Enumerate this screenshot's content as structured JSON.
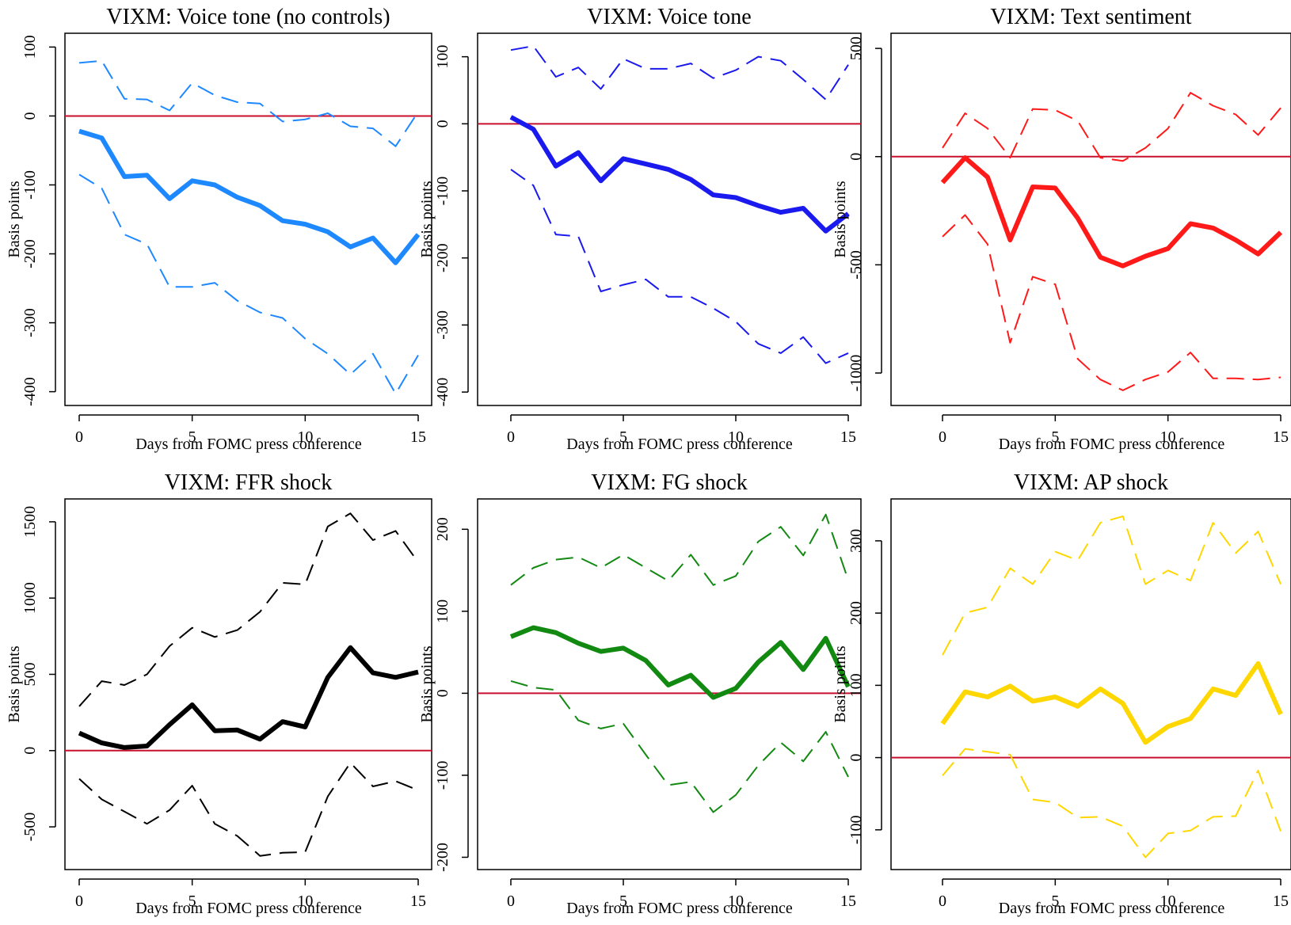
{
  "chart_data": [
    {
      "type": "line",
      "title": "VIXM: Voice tone (no controls)",
      "xlabel": "Days from FOMC press conference",
      "ylabel": "Basis points",
      "color": "#1e88ff",
      "xlim": [
        0,
        15
      ],
      "ylim": [
        -420,
        120
      ],
      "xticks": [
        0,
        5,
        10,
        15
      ],
      "yticks": [
        -400,
        -300,
        -200,
        -100,
        0,
        100
      ],
      "zero_line_color": "#c8102e",
      "x": [
        0,
        1,
        2,
        3,
        4,
        5,
        6,
        7,
        8,
        9,
        10,
        11,
        12,
        13,
        14,
        15
      ],
      "series": [
        {
          "role": "estimate",
          "values": [
            -22,
            -32,
            -88,
            -86,
            -120,
            -94,
            -100,
            -118,
            -130,
            -152,
            -157,
            -168,
            -190,
            -177,
            -213,
            -172
          ]
        },
        {
          "role": "upper",
          "values": [
            77,
            80,
            25,
            24,
            8,
            48,
            30,
            20,
            18,
            -8,
            -5,
            4,
            -15,
            -18,
            -44,
            6
          ]
        },
        {
          "role": "lower",
          "values": [
            -85,
            -105,
            -172,
            -186,
            -248,
            -248,
            -242,
            -268,
            -285,
            -293,
            -323,
            -345,
            -375,
            -345,
            -403,
            -347
          ]
        }
      ]
    },
    {
      "type": "line",
      "title": "VIXM: Voice tone",
      "xlabel": "Days from FOMC press conference",
      "ylabel": "Basis points",
      "color": "#1a1aee",
      "xlim": [
        0,
        15
      ],
      "ylim": [
        -420,
        135
      ],
      "xticks": [
        0,
        5,
        10,
        15
      ],
      "yticks": [
        -400,
        -300,
        -200,
        -100,
        0,
        100
      ],
      "zero_line_color": "#c8102e",
      "x": [
        0,
        1,
        2,
        3,
        4,
        5,
        6,
        7,
        8,
        9,
        10,
        11,
        12,
        13,
        14,
        15
      ],
      "series": [
        {
          "role": "estimate",
          "values": [
            10,
            -8,
            -63,
            -43,
            -85,
            -52,
            -60,
            -68,
            -83,
            -106,
            -110,
            -122,
            -132,
            -126,
            -160,
            -134
          ]
        },
        {
          "role": "upper",
          "values": [
            110,
            116,
            70,
            84,
            52,
            97,
            82,
            82,
            90,
            68,
            80,
            100,
            94,
            66,
            36,
            88
          ]
        },
        {
          "role": "lower",
          "values": [
            -68,
            -92,
            -165,
            -168,
            -250,
            -240,
            -232,
            -258,
            -258,
            -275,
            -295,
            -328,
            -342,
            -318,
            -357,
            -342
          ]
        }
      ]
    },
    {
      "type": "line",
      "title": "VIXM: Text sentiment",
      "xlabel": "Days from FOMC press conference",
      "ylabel": "Basis points",
      "color": "#ff1a1a",
      "xlim": [
        0,
        15
      ],
      "ylim": [
        -1150,
        570
      ],
      "xticks": [
        0,
        5,
        10,
        15
      ],
      "yticks": [
        -1000,
        -500,
        0,
        500
      ],
      "zero_line_color": "#c8102e",
      "x": [
        0,
        1,
        2,
        3,
        4,
        5,
        6,
        7,
        8,
        9,
        10,
        11,
        12,
        13,
        14,
        15
      ],
      "series": [
        {
          "role": "estimate",
          "values": [
            -120,
            -5,
            -95,
            -385,
            -140,
            -145,
            -285,
            -465,
            -505,
            -460,
            -425,
            -310,
            -330,
            -385,
            -450,
            -350
          ]
        },
        {
          "role": "upper",
          "values": [
            40,
            200,
            130,
            -5,
            220,
            215,
            165,
            -5,
            -20,
            40,
            130,
            295,
            235,
            195,
            100,
            225
          ]
        },
        {
          "role": "lower",
          "values": [
            -370,
            -270,
            -405,
            -860,
            -555,
            -590,
            -935,
            -1030,
            -1080,
            -1030,
            -995,
            -905,
            -1025,
            -1025,
            -1030,
            -1020
          ]
        }
      ]
    },
    {
      "type": "line",
      "title": "VIXM: FFR shock",
      "xlabel": "Days from FOMC press conference",
      "ylabel": "Basis points",
      "color": "#000000",
      "xlim": [
        0,
        15
      ],
      "ylim": [
        -780,
        1650
      ],
      "xticks": [
        0,
        5,
        10,
        15
      ],
      "yticks": [
        -500,
        0,
        500,
        1000,
        1500
      ],
      "zero_line_color": "#c8102e",
      "x": [
        0,
        1,
        2,
        3,
        4,
        5,
        6,
        7,
        8,
        9,
        10,
        11,
        12,
        13,
        14,
        15
      ],
      "series": [
        {
          "role": "estimate",
          "values": [
            115,
            50,
            20,
            30,
            170,
            300,
            130,
            135,
            75,
            190,
            155,
            480,
            675,
            510,
            480,
            515
          ]
        },
        {
          "role": "upper",
          "values": [
            290,
            455,
            430,
            500,
            685,
            805,
            745,
            790,
            910,
            1100,
            1090,
            1470,
            1555,
            1380,
            1440,
            1235
          ]
        },
        {
          "role": "lower",
          "values": [
            -185,
            -320,
            -400,
            -480,
            -390,
            -230,
            -480,
            -560,
            -690,
            -670,
            -665,
            -300,
            -80,
            -235,
            -200,
            -260
          ]
        }
      ]
    },
    {
      "type": "line",
      "title": "VIXM: FG shock",
      "xlabel": "Days from FOMC press conference",
      "ylabel": "Basis points",
      "color": "#128a12",
      "xlim": [
        0,
        15
      ],
      "ylim": [
        -215,
        237
      ],
      "xticks": [
        0,
        5,
        10,
        15
      ],
      "yticks": [
        -200,
        -100,
        0,
        100,
        200
      ],
      "zero_line_color": "#c8102e",
      "x": [
        0,
        1,
        2,
        3,
        4,
        5,
        6,
        7,
        8,
        9,
        10,
        11,
        12,
        13,
        14,
        15
      ],
      "series": [
        {
          "role": "estimate",
          "values": [
            69,
            80,
            74,
            61,
            51,
            55,
            40,
            10,
            22,
            -5,
            6,
            38,
            62,
            29,
            67,
            8
          ]
        },
        {
          "role": "upper",
          "values": [
            132,
            153,
            163,
            166,
            153,
            169,
            153,
            137,
            169,
            132,
            143,
            185,
            203,
            168,
            218,
            138
          ]
        },
        {
          "role": "lower",
          "values": [
            15,
            7,
            4,
            -33,
            -43,
            -37,
            -75,
            -112,
            -108,
            -145,
            -124,
            -88,
            -60,
            -83,
            -47,
            -102
          ]
        }
      ]
    },
    {
      "type": "line",
      "title": "VIXM: AP shock",
      "xlabel": "Days from FOMC press conference",
      "ylabel": "Basis points",
      "color": "#ffd700",
      "xlim": [
        0,
        15
      ],
      "ylim": [
        -155,
        358
      ],
      "xticks": [
        0,
        5,
        10,
        15
      ],
      "yticks": [
        -100,
        0,
        100,
        200,
        300
      ],
      "zero_line_color": "#c8102e",
      "x": [
        0,
        1,
        2,
        3,
        4,
        5,
        6,
        7,
        8,
        9,
        10,
        11,
        12,
        13,
        14,
        15
      ],
      "series": [
        {
          "role": "estimate",
          "values": [
            47,
            91,
            84,
            99,
            78,
            84,
            71,
            95,
            75,
            21,
            43,
            54,
            95,
            86,
            130,
            60
          ]
        },
        {
          "role": "upper",
          "values": [
            142,
            200,
            208,
            262,
            240,
            285,
            273,
            325,
            334,
            240,
            259,
            245,
            325,
            283,
            313,
            240
          ]
        },
        {
          "role": "lower",
          "values": [
            -25,
            12,
            8,
            4,
            -58,
            -62,
            -83,
            -82,
            -95,
            -138,
            -105,
            -101,
            -82,
            -81,
            -18,
            -102
          ]
        }
      ]
    }
  ]
}
